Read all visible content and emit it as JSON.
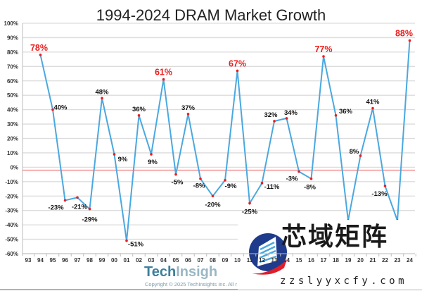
{
  "chart_data": {
    "type": "line",
    "title": "1994-2024 DRAM Market Growth",
    "xlabel": "",
    "ylabel": "",
    "x_ticks": [
      "93",
      "94",
      "95",
      "96",
      "97",
      "98",
      "99",
      "00",
      "01",
      "02",
      "03",
      "04",
      "05",
      "06",
      "07",
      "08",
      "09",
      "10",
      "11",
      "12",
      "13",
      "14",
      "15",
      "16",
      "17",
      "18",
      "19",
      "20",
      "21",
      "22",
      "23",
      "24"
    ],
    "y_ticks": [
      "100%",
      "90%",
      "80%",
      "70%",
      "60%",
      "50%",
      "40%",
      "30%",
      "20%",
      "10%",
      "0%",
      "-10%",
      "-20%",
      "-30%",
      "-40%",
      "-50%",
      "-60%"
    ],
    "ylim": [
      -60,
      100
    ],
    "grid": true,
    "reference_line": -2,
    "series": [
      {
        "x": [
          "94",
          "95",
          "96",
          "97",
          "98",
          "99",
          "00",
          "01",
          "02",
          "03",
          "04",
          "05",
          "06",
          "07",
          "08",
          "09",
          "10",
          "11",
          "12",
          "13",
          "14",
          "15",
          "16",
          "17",
          "18",
          "19",
          "20",
          "21",
          "22",
          "23",
          "24"
        ],
        "values": [
          78,
          40,
          -23,
          -21,
          -29,
          48,
          9,
          -51,
          36,
          9,
          61,
          -5,
          37,
          -8,
          -20,
          -9,
          67,
          -25,
          -11,
          32,
          34,
          -3,
          -8,
          77,
          36,
          -37,
          8,
          41,
          -13,
          -37,
          88
        ],
        "labels": [
          "78%",
          "40%",
          "-23%",
          "-21%",
          "-29%",
          "48%",
          "9%",
          "-51%",
          "36%",
          "9%",
          "61%",
          "-5%",
          "37%",
          "-8%",
          "-20%",
          "-9%",
          "67%",
          "-25%",
          "-11%",
          "32%",
          "34%",
          "-3%",
          "-8%",
          "77%",
          "36%",
          null,
          "8%",
          "41%",
          "-13%",
          null,
          "88%"
        ],
        "highlight": [
          true,
          false,
          false,
          false,
          false,
          false,
          false,
          false,
          false,
          false,
          true,
          false,
          false,
          false,
          false,
          false,
          true,
          false,
          false,
          false,
          false,
          false,
          false,
          true,
          false,
          false,
          false,
          false,
          false,
          false,
          true
        ]
      }
    ],
    "colors": {
      "line": "#4aa8e0",
      "point": "#ee1c1c",
      "highlight_label": "#ee1c1c",
      "reference_line": "#f08080"
    }
  },
  "footer": {
    "brand_a": "Tech",
    "brand_b": "Insigh",
    "copyright": "Copyright © 2025 TechInsights Inc. All r"
  },
  "watermark": {
    "text": "芯域矩阵",
    "url": "zzslyyxcfy.com"
  }
}
